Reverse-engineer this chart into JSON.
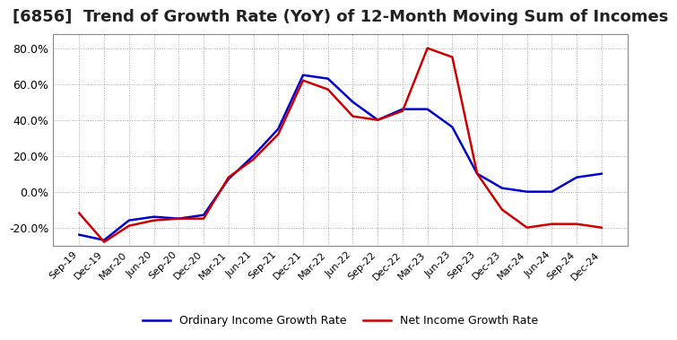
{
  "title": "[6856]  Trend of Growth Rate (YoY) of 12-Month Moving Sum of Incomes",
  "title_fontsize": 13,
  "background_color": "#ffffff",
  "grid_color": "#aaaaaa",
  "ordinary_color": "#0000cc",
  "net_color": "#cc0000",
  "legend_labels": [
    "Ordinary Income Growth Rate",
    "Net Income Growth Rate"
  ],
  "dates": [
    "Sep-19",
    "Dec-19",
    "Mar-20",
    "Jun-20",
    "Sep-20",
    "Dec-20",
    "Mar-21",
    "Jun-21",
    "Sep-21",
    "Dec-21",
    "Mar-22",
    "Jun-22",
    "Sep-22",
    "Dec-22",
    "Mar-23",
    "Jun-23",
    "Sep-23",
    "Dec-23",
    "Mar-24",
    "Jun-24",
    "Sep-24",
    "Dec-24"
  ],
  "ordinary": [
    -24,
    -27,
    -16,
    -14,
    -15,
    -13,
    7,
    20,
    35,
    65,
    63,
    50,
    40,
    46,
    46,
    36,
    10,
    2,
    0,
    0,
    8,
    10
  ],
  "net": [
    -12,
    -28,
    -19,
    -16,
    -15,
    -15,
    8,
    18,
    32,
    62,
    57,
    42,
    40,
    45,
    80,
    75,
    10,
    -10,
    -20,
    -18,
    -18,
    -20
  ],
  "ylim": [
    -30,
    88
  ],
  "yticks": [
    -20.0,
    0.0,
    20.0,
    40.0,
    60.0,
    80.0
  ]
}
